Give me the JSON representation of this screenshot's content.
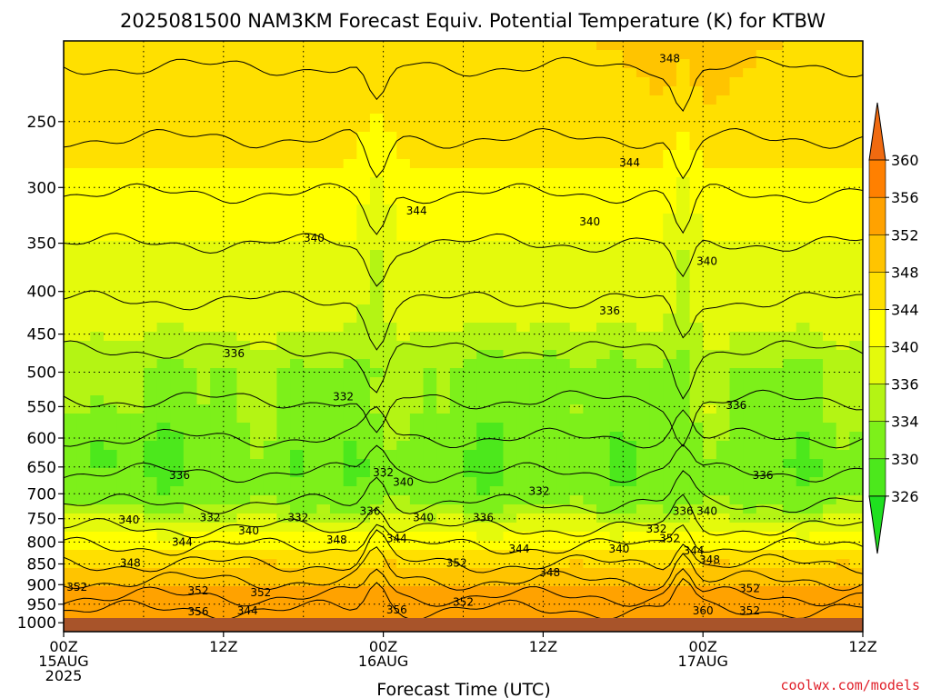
{
  "chart_data": {
    "type": "heatmap",
    "title": "2025081500 NAM3KM Forecast Equiv. Potential Temperature (K) for KTBW",
    "xlabel": "Forecast Time (UTC)",
    "ylabel": "",
    "credit": "coolwx.com/models",
    "x_ticks": [
      {
        "hour": 0,
        "lines": [
          "00Z",
          "15AUG",
          "2025"
        ]
      },
      {
        "hour": 12,
        "lines": [
          "12Z"
        ]
      },
      {
        "hour": 24,
        "lines": [
          "00Z",
          "16AUG"
        ]
      },
      {
        "hour": 36,
        "lines": [
          "12Z"
        ]
      },
      {
        "hour": 48,
        "lines": [
          "00Z",
          "17AUG"
        ]
      },
      {
        "hour": 60,
        "lines": [
          "12Z"
        ]
      }
    ],
    "xlim": [
      0,
      60
    ],
    "y_ticks": [
      250,
      300,
      350,
      400,
      450,
      500,
      550,
      600,
      650,
      700,
      750,
      800,
      850,
      900,
      950,
      1000
    ],
    "ylim": [
      1025,
      200
    ],
    "y_scale": "log",
    "colorbar": {
      "levels": [
        326,
        330,
        334,
        336,
        340,
        344,
        348,
        352,
        356,
        360
      ],
      "colors": [
        "#1fe01f",
        "#4ce81c",
        "#7df01a",
        "#b4f414",
        "#e4fa0c",
        "#ffff00",
        "#ffe000",
        "#ffc400",
        "#ffa200",
        "#ff8000",
        "#f06a10"
      ]
    },
    "profile_theta_e_K": [
      {
        "p": 200,
        "v": 348
      },
      {
        "p": 250,
        "v": 346
      },
      {
        "p": 300,
        "v": 343
      },
      {
        "p": 350,
        "v": 340
      },
      {
        "p": 400,
        "v": 338
      },
      {
        "p": 450,
        "v": 336
      },
      {
        "p": 500,
        "v": 334
      },
      {
        "p": 550,
        "v": 334
      },
      {
        "p": 600,
        "v": 332
      },
      {
        "p": 650,
        "v": 331
      },
      {
        "p": 700,
        "v": 332
      },
      {
        "p": 750,
        "v": 336
      },
      {
        "p": 800,
        "v": 342
      },
      {
        "p": 850,
        "v": 348
      },
      {
        "p": 900,
        "v": 352
      },
      {
        "p": 950,
        "v": 355
      },
      {
        "p": 1000,
        "v": 356
      }
    ],
    "contour_labels": [
      {
        "hour": 45.5,
        "p": 210,
        "text": "348"
      },
      {
        "hour": 42.5,
        "p": 280,
        "text": "344"
      },
      {
        "hour": 26.5,
        "p": 320,
        "text": "344"
      },
      {
        "hour": 18.8,
        "p": 345,
        "text": "340"
      },
      {
        "hour": 39.5,
        "p": 330,
        "text": "340"
      },
      {
        "hour": 48.3,
        "p": 368,
        "text": "340"
      },
      {
        "hour": 41.0,
        "p": 422,
        "text": "336"
      },
      {
        "hour": 12.8,
        "p": 475,
        "text": "336"
      },
      {
        "hour": 21.0,
        "p": 535,
        "text": "332"
      },
      {
        "hour": 50.5,
        "p": 548,
        "text": "336"
      },
      {
        "hour": 8.7,
        "p": 665,
        "text": "336"
      },
      {
        "hour": 52.5,
        "p": 665,
        "text": "336"
      },
      {
        "hour": 24.0,
        "p": 660,
        "text": "332"
      },
      {
        "hour": 25.5,
        "p": 678,
        "text": "340"
      },
      {
        "hour": 35.7,
        "p": 695,
        "text": "332"
      },
      {
        "hour": 4.9,
        "p": 752,
        "text": "340"
      },
      {
        "hour": 11.0,
        "p": 748,
        "text": "332"
      },
      {
        "hour": 17.6,
        "p": 748,
        "text": "332"
      },
      {
        "hour": 23.0,
        "p": 735,
        "text": "336"
      },
      {
        "hour": 27.0,
        "p": 748,
        "text": "340"
      },
      {
        "hour": 31.5,
        "p": 748,
        "text": "336"
      },
      {
        "hour": 44.5,
        "p": 772,
        "text": "332"
      },
      {
        "hour": 46.5,
        "p": 735,
        "text": "336"
      },
      {
        "hour": 48.3,
        "p": 735,
        "text": "340"
      },
      {
        "hour": 13.9,
        "p": 775,
        "text": "340"
      },
      {
        "hour": 8.9,
        "p": 800,
        "text": "344"
      },
      {
        "hour": 20.5,
        "p": 795,
        "text": "348"
      },
      {
        "hour": 25.0,
        "p": 792,
        "text": "344"
      },
      {
        "hour": 34.2,
        "p": 815,
        "text": "344"
      },
      {
        "hour": 41.7,
        "p": 815,
        "text": "340"
      },
      {
        "hour": 45.5,
        "p": 792,
        "text": "352"
      },
      {
        "hour": 47.3,
        "p": 820,
        "text": "344"
      },
      {
        "hour": 48.5,
        "p": 840,
        "text": "348"
      },
      {
        "hour": 5.0,
        "p": 848,
        "text": "348"
      },
      {
        "hour": 29.5,
        "p": 848,
        "text": "352"
      },
      {
        "hour": 36.5,
        "p": 870,
        "text": "348"
      },
      {
        "hour": 1.0,
        "p": 906,
        "text": "352"
      },
      {
        "hour": 10.1,
        "p": 915,
        "text": "352"
      },
      {
        "hour": 14.8,
        "p": 920,
        "text": "352"
      },
      {
        "hour": 51.5,
        "p": 910,
        "text": "352"
      },
      {
        "hour": 10.1,
        "p": 970,
        "text": "356"
      },
      {
        "hour": 13.8,
        "p": 968,
        "text": "344"
      },
      {
        "hour": 25.0,
        "p": 965,
        "text": "356"
      },
      {
        "hour": 30.0,
        "p": 945,
        "text": "352"
      },
      {
        "hour": 48.0,
        "p": 968,
        "text": "360"
      },
      {
        "hour": 51.5,
        "p": 968,
        "text": "352"
      }
    ]
  }
}
